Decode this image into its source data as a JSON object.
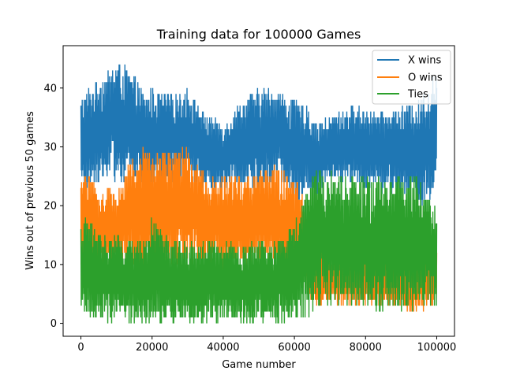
{
  "chart_data": {
    "type": "line",
    "title": "Training data for 100000 Games",
    "xlabel": "Game number",
    "ylabel": "Wins out of previous 50 games",
    "xlim": [
      -5000,
      105000
    ],
    "ylim": [
      -2.2,
      47.2
    ],
    "x_ticks": [
      0,
      20000,
      40000,
      60000,
      80000,
      100000
    ],
    "x_tick_labels": [
      "0",
      "20000",
      "40000",
      "60000",
      "80000",
      "100000"
    ],
    "y_ticks": [
      0,
      10,
      20,
      30,
      40
    ],
    "y_tick_labels": [
      "0",
      "10",
      "20",
      "30",
      "40"
    ],
    "grid": false,
    "legend": {
      "position": "top-right"
    },
    "series": [
      {
        "name": "X wins",
        "color": "#1f77b4",
        "band_x": [
          0,
          2000,
          5000,
          8000,
          10000,
          12000,
          15000,
          18000,
          20000,
          25000,
          30000,
          35000,
          40000,
          45000,
          50000,
          55000,
          60000,
          64000,
          66000,
          70000,
          75000,
          80000,
          85000,
          90000,
          95000,
          100000
        ],
        "band_min": [
          22,
          23,
          24,
          25,
          24,
          24,
          25,
          22,
          23,
          24,
          25,
          23,
          23,
          24,
          22,
          25,
          21,
          22,
          22,
          24,
          24,
          23,
          22,
          22,
          20,
          20
        ],
        "band_max": [
          38,
          40,
          42,
          43,
          45,
          44,
          42,
          39,
          40,
          39,
          40,
          36,
          34,
          38,
          40,
          40,
          38,
          37,
          34,
          35,
          37,
          37,
          36,
          37,
          38,
          43
        ]
      },
      {
        "name": "O wins",
        "color": "#ff7f0e",
        "band_x": [
          0,
          2000,
          5000,
          8000,
          10000,
          12000,
          15000,
          18000,
          20000,
          25000,
          30000,
          35000,
          40000,
          45000,
          50000,
          55000,
          60000,
          64000,
          66000,
          70000,
          75000,
          80000,
          85000,
          90000,
          95000,
          100000
        ],
        "band_min": [
          8,
          10,
          9,
          10,
          9,
          10,
          9,
          10,
          9,
          9,
          10,
          10,
          9,
          10,
          10,
          9,
          8,
          4,
          3,
          3,
          3,
          3,
          3,
          2,
          2,
          3
        ],
        "band_max": [
          24,
          27,
          22,
          23,
          22,
          26,
          29,
          30,
          30,
          29,
          30,
          25,
          25,
          25,
          26,
          27,
          25,
          20,
          14,
          12,
          14,
          13,
          12,
          14,
          11,
          17
        ]
      },
      {
        "name": "Ties",
        "color": "#2ca02c",
        "band_x": [
          0,
          2000,
          5000,
          8000,
          10000,
          12000,
          15000,
          18000,
          20000,
          25000,
          30000,
          35000,
          40000,
          45000,
          50000,
          55000,
          60000,
          64000,
          66000,
          70000,
          75000,
          80000,
          85000,
          90000,
          95000,
          100000
        ],
        "band_min": [
          2,
          1,
          1,
          0,
          1,
          0,
          0,
          0,
          0,
          0,
          0,
          0,
          0,
          0,
          0,
          0,
          0,
          1,
          3,
          3,
          3,
          2,
          2,
          2,
          2,
          3
        ],
        "band_max": [
          17,
          18,
          16,
          15,
          15,
          14,
          14,
          15,
          18,
          14,
          14,
          14,
          14,
          13,
          14,
          14,
          17,
          24,
          27,
          26,
          25,
          25,
          25,
          26,
          25,
          20
        ]
      }
    ]
  }
}
